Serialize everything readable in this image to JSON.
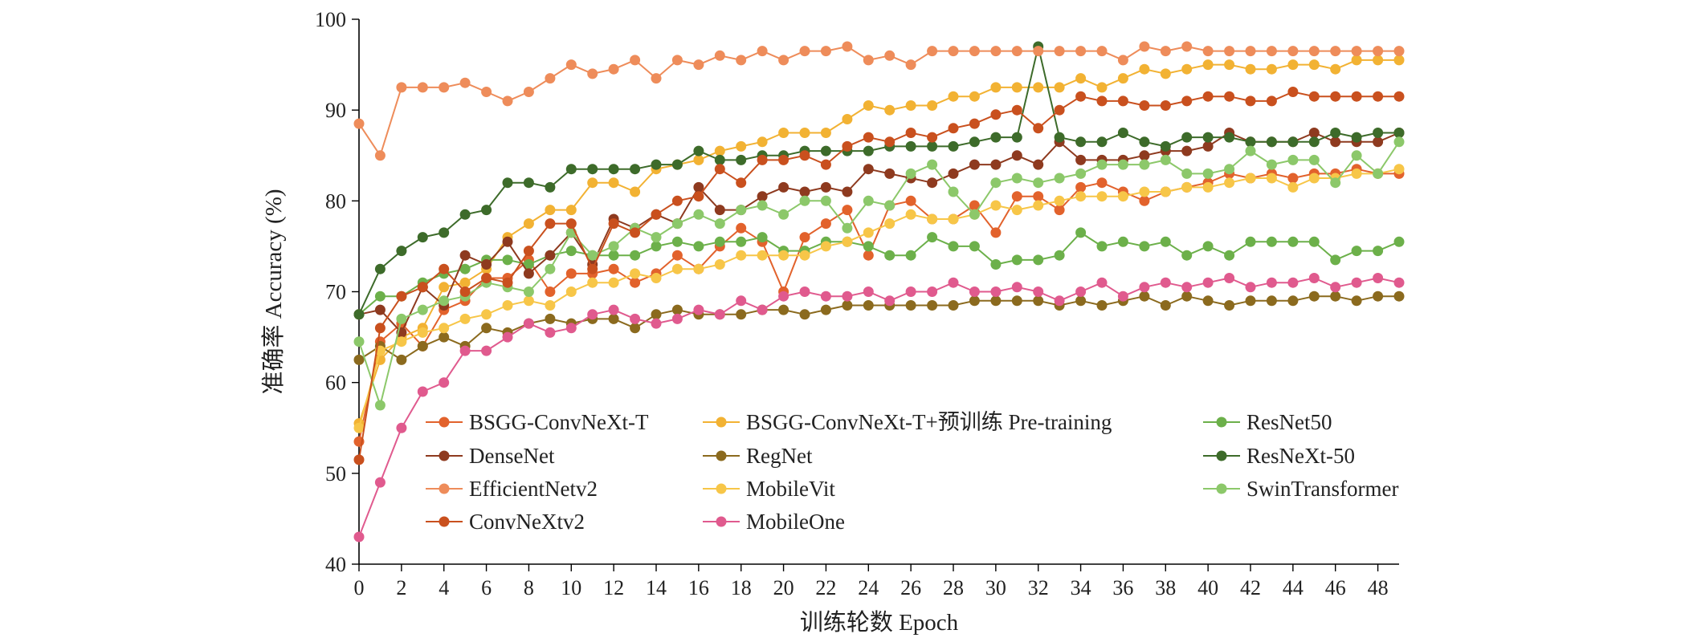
{
  "chart_data": {
    "type": "line",
    "xlabel": "训练轮数 Epoch",
    "ylabel": "准确率 Accuracy (%)",
    "xlim": [
      0,
      49
    ],
    "ylim": [
      40,
      100
    ],
    "x_ticks": [
      0,
      2,
      4,
      6,
      8,
      10,
      12,
      14,
      16,
      18,
      20,
      22,
      24,
      26,
      28,
      30,
      32,
      34,
      36,
      38,
      40,
      42,
      44,
      46,
      48
    ],
    "y_ticks": [
      40,
      50,
      60,
      70,
      80,
      90,
      100
    ],
    "grid": false,
    "legend_position": "lower-center inside plot, 3 columns",
    "x": [
      0,
      1,
      2,
      3,
      4,
      5,
      6,
      7,
      8,
      9,
      10,
      11,
      12,
      13,
      14,
      15,
      16,
      17,
      18,
      19,
      20,
      21,
      22,
      23,
      24,
      25,
      26,
      27,
      28,
      29,
      30,
      31,
      32,
      33,
      34,
      35,
      36,
      37,
      38,
      39,
      40,
      41,
      42,
      43,
      44,
      45,
      46,
      47,
      48,
      49
    ],
    "series": [
      {
        "name": "BSGG-ConvNeXt-T",
        "color": "#E2622C",
        "values": [
          53.5,
          64.5,
          66.5,
          64,
          68,
          69,
          71.5,
          71.5,
          73.5,
          70,
          72,
          72,
          72.5,
          71,
          72,
          74,
          72.5,
          75,
          77,
          75.5,
          70,
          76,
          77.5,
          79,
          74,
          79.5,
          80,
          78,
          78,
          79.5,
          76.5,
          80.5,
          80.5,
          79,
          81.5,
          82,
          81,
          80,
          81,
          81.5,
          82,
          83,
          82.5,
          83,
          82.5,
          83,
          83,
          83.5,
          83,
          83
        ]
      },
      {
        "name": "BSGG-ConvNeXt-T+预训练 Pre-training",
        "color": "#F2B233",
        "values": [
          55.5,
          62.5,
          65,
          66,
          70.5,
          71,
          72.5,
          76,
          77.5,
          79,
          79,
          82,
          82,
          81,
          83.5,
          84,
          84.5,
          85.5,
          86,
          86.5,
          87.5,
          87.5,
          87.5,
          89,
          90.5,
          90,
          90.5,
          90.5,
          91.5,
          91.5,
          92.5,
          92.5,
          92.5,
          92.5,
          93.5,
          92.5,
          93.5,
          94.5,
          94,
          94.5,
          95,
          95,
          94.5,
          94.5,
          95,
          95,
          94.5,
          95.5,
          95.5,
          95.5
        ]
      },
      {
        "name": "ResNet50",
        "color": "#6CB04A",
        "values": [
          67.5,
          69.5,
          69.5,
          71,
          72,
          72.5,
          73.5,
          73.5,
          73,
          74,
          74.5,
          74,
          74,
          74,
          75,
          75.5,
          75,
          75.5,
          75.5,
          76,
          74.5,
          74.5,
          75.5,
          75.5,
          75,
          74,
          74,
          76,
          75,
          75,
          73,
          73.5,
          73.5,
          74,
          76.5,
          75,
          75.5,
          75,
          75.5,
          74,
          75,
          74,
          75.5,
          75.5,
          75.5,
          75.5,
          73.5,
          74.5,
          74.5,
          75.5
        ]
      },
      {
        "name": "DenseNet",
        "color": "#8E3A1F",
        "values": [
          67.5,
          68,
          65.5,
          70.5,
          68.5,
          74,
          73,
          75.5,
          72,
          74,
          76.5,
          73,
          78,
          77,
          78.5,
          77.5,
          81.5,
          79,
          79,
          80.5,
          81.5,
          81,
          81.5,
          81,
          83.5,
          83,
          82.5,
          82,
          83,
          84,
          84,
          85,
          84,
          86.5,
          84.5,
          84.5,
          84.5,
          85,
          85.5,
          85.5,
          86,
          87.5,
          86.5,
          86.5,
          86.5,
          87.5,
          86.5,
          86.5,
          86.5,
          87.5
        ]
      },
      {
        "name": "RegNet",
        "color": "#8B6A1E",
        "values": [
          62.5,
          64,
          62.5,
          64,
          65,
          64,
          66,
          65.5,
          66.5,
          67,
          66.5,
          67,
          67,
          66,
          67.5,
          68,
          67.5,
          67.5,
          67.5,
          68,
          68,
          67.5,
          68,
          68.5,
          68.5,
          68.5,
          68.5,
          68.5,
          68.5,
          69,
          69,
          69,
          69,
          68.5,
          69,
          68.5,
          69,
          69.5,
          68.5,
          69.5,
          69,
          68.5,
          69,
          69,
          69,
          69.5,
          69.5,
          69,
          69.5,
          69.5
        ]
      },
      {
        "name": "ResNeXt-50",
        "color": "#3D6B2A",
        "values": [
          67.5,
          72.5,
          74.5,
          76,
          76.5,
          78.5,
          79,
          82,
          82,
          81.5,
          83.5,
          83.5,
          83.5,
          83.5,
          84,
          84,
          85.5,
          84.5,
          84.5,
          85,
          85,
          85.5,
          85.5,
          85.5,
          85.5,
          86,
          86,
          86,
          86,
          86.5,
          87,
          87,
          97,
          87,
          86.5,
          86.5,
          87.5,
          86.5,
          86,
          87,
          87,
          87,
          86.5,
          86.5,
          86.5,
          86.5,
          87.5,
          87,
          87.5,
          87.5
        ]
      },
      {
        "name": "EfficientNetv2",
        "color": "#EE8C5A",
        "values": [
          88.5,
          85,
          92.5,
          92.5,
          92.5,
          93,
          92,
          91,
          92,
          93.5,
          95,
          94,
          94.5,
          95.5,
          93.5,
          95.5,
          95,
          96,
          95.5,
          96.5,
          95.5,
          96.5,
          96.5,
          97,
          95.5,
          96,
          95,
          96.5,
          96.5,
          96.5,
          96.5,
          96.5,
          96.5,
          96.5,
          96.5,
          96.5,
          95.5,
          97,
          96.5,
          97,
          96.5,
          96.5,
          96.5,
          96.5,
          96.5,
          96.5,
          96.5,
          96.5,
          96.5,
          96.5
        ]
      },
      {
        "name": "MobileVit",
        "color": "#F7C648",
        "values": [
          55,
          63.5,
          64.5,
          65.5,
          66,
          67,
          67.5,
          68.5,
          69,
          68.5,
          70,
          71,
          71,
          72,
          71.5,
          72.5,
          72.5,
          73,
          74,
          74,
          74,
          74,
          75,
          75.5,
          76.5,
          77.5,
          78.5,
          78,
          78,
          78.5,
          79.5,
          79,
          79.5,
          80,
          80.5,
          80.5,
          80.5,
          81,
          81,
          81.5,
          81.5,
          82,
          82.5,
          82.5,
          81.5,
          82.5,
          82.5,
          83,
          83,
          83.5
        ]
      },
      {
        "name": "SwinTransformer",
        "color": "#8CC86A",
        "values": [
          64.5,
          57.5,
          67,
          68,
          69,
          69.5,
          71,
          70.5,
          70,
          72.5,
          76.5,
          74,
          75,
          77,
          76,
          77.5,
          78.5,
          77.5,
          79,
          79.5,
          78.5,
          80,
          80,
          77,
          80,
          79.5,
          83,
          84,
          81,
          78.5,
          82,
          82.5,
          82,
          82.5,
          83,
          84,
          84,
          84,
          84.5,
          83,
          83,
          83.5,
          85.5,
          84,
          84.5,
          84.5,
          82,
          85,
          83,
          86.5
        ]
      },
      {
        "name": "ConvNeXtv2",
        "color": "#C9501E",
        "values": [
          51.5,
          66,
          69.5,
          70.5,
          72.5,
          70,
          71.5,
          71,
          74.5,
          77.5,
          77.5,
          72.5,
          77.5,
          76.5,
          78.5,
          80,
          80.5,
          83.5,
          82,
          84.5,
          84.5,
          85,
          84,
          86,
          87,
          86.5,
          87.5,
          87,
          88,
          88.5,
          89.5,
          90,
          88,
          90,
          91.5,
          91,
          91,
          90.5,
          90.5,
          91,
          91.5,
          91.5,
          91,
          91,
          92,
          91.5,
          91.5,
          91.5,
          91.5,
          91.5
        ]
      },
      {
        "name": "MobileOne",
        "color": "#E05A8E",
        "values": [
          43,
          49,
          55,
          59,
          60,
          63.5,
          63.5,
          65,
          66.5,
          65.5,
          66,
          67.5,
          68,
          67,
          66.5,
          67,
          68,
          67.5,
          69,
          68,
          69.5,
          70,
          69.5,
          69.5,
          70,
          69,
          70,
          70,
          71,
          70,
          70,
          70.5,
          70,
          69,
          70,
          71,
          69.5,
          70.5,
          71,
          70.5,
          71,
          71.5,
          70.5,
          71,
          71,
          71.5,
          70.5,
          71,
          71.5,
          71
        ]
      }
    ]
  }
}
